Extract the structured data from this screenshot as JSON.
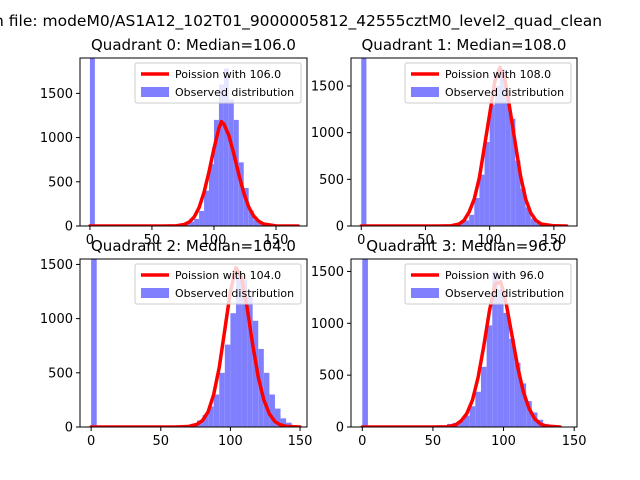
{
  "figure": {
    "title": "n file: modeM0/AS1A12_102T01_9000005812_42555cztM0_level2_quad_clean"
  },
  "colors": {
    "histogram": "#8080ff",
    "poisson_line": "#ff0000"
  },
  "chart_data": [
    {
      "type": "bar",
      "title": "Quadrant 0: Median=106.0",
      "xlim": [
        -8,
        175
      ],
      "ylim": [
        0,
        1900
      ],
      "xticks": [
        0,
        50,
        100,
        150
      ],
      "yticks": [
        0,
        500,
        1000,
        1500
      ],
      "legend_position": "top-right",
      "legend": [
        {
          "label": "Poission with 106.0",
          "kind": "line"
        },
        {
          "label": "Observed distribution",
          "kind": "patch"
        }
      ],
      "histogram": {
        "bin_width": 4,
        "x": [
          0,
          76,
          80,
          84,
          88,
          92,
          96,
          100,
          104,
          108,
          112,
          116,
          120,
          124,
          128,
          132,
          136,
          140
        ],
        "values": [
          1900,
          20,
          50,
          80,
          170,
          400,
          700,
          1200,
          1600,
          1780,
          1430,
          1200,
          720,
          430,
          170,
          70,
          30,
          10
        ]
      },
      "poisson": {
        "mean": 106,
        "x": [
          0,
          60,
          70,
          76,
          80,
          84,
          88,
          92,
          96,
          100,
          104,
          106,
          108,
          112,
          116,
          120,
          124,
          128,
          132,
          136,
          140,
          150,
          168
        ],
        "values": [
          0,
          0,
          3,
          17,
          44,
          101,
          209,
          381,
          613,
          876,
          1107,
          1180,
          1154,
          1026,
          817,
          585,
          376,
          216,
          113,
          54,
          23,
          2,
          0
        ]
      }
    },
    {
      "type": "bar",
      "title": "Quadrant 1: Median=108.0",
      "xlim": [
        -8,
        168
      ],
      "ylim": [
        0,
        1800
      ],
      "xticks": [
        0,
        50,
        100,
        150
      ],
      "yticks": [
        0,
        500,
        1000,
        1500
      ],
      "legend_position": "top-right",
      "legend": [
        {
          "label": "Poission with 108.0",
          "kind": "line"
        },
        {
          "label": "Observed distribution",
          "kind": "patch"
        }
      ],
      "histogram": {
        "bin_width": 4,
        "x": [
          0,
          70,
          76,
          80,
          84,
          88,
          92,
          96,
          100,
          104,
          108,
          112,
          116,
          120,
          124,
          128,
          132,
          136,
          140
        ],
        "values": [
          1800,
          20,
          40,
          60,
          120,
          300,
          550,
          900,
          1300,
          1500,
          1680,
          1450,
          1150,
          700,
          400,
          200,
          80,
          30,
          10
        ]
      },
      "poisson": {
        "mean": 108,
        "x": [
          0,
          60,
          70,
          76,
          80,
          84,
          88,
          92,
          96,
          100,
          104,
          108,
          112,
          116,
          120,
          124,
          128,
          132,
          136,
          140,
          150,
          160
        ],
        "values": [
          0,
          0,
          3,
          20,
          60,
          150,
          290,
          520,
          860,
          1200,
          1550,
          1700,
          1560,
          1230,
          880,
          540,
          290,
          140,
          60,
          22,
          2,
          0
        ]
      }
    },
    {
      "type": "bar",
      "title": "Quadrant 2: Median=104.0",
      "xlim": [
        -8,
        155
      ],
      "ylim": [
        0,
        1550
      ],
      "xticks": [
        0,
        50,
        100,
        150
      ],
      "yticks": [
        0,
        500,
        1000,
        1500
      ],
      "legend_position": "top-right",
      "legend": [
        {
          "label": "Poission with 104.0",
          "kind": "line"
        },
        {
          "label": "Observed distribution",
          "kind": "patch"
        }
      ],
      "histogram": {
        "bin_width": 4,
        "x": [
          0,
          68,
          72,
          76,
          80,
          84,
          88,
          92,
          96,
          100,
          104,
          108,
          112,
          116,
          120,
          124,
          128,
          132,
          136,
          140,
          144
        ],
        "values": [
          1550,
          20,
          30,
          60,
          110,
          190,
          300,
          500,
          760,
          1050,
          1420,
          1360,
          1200,
          980,
          720,
          500,
          300,
          170,
          80,
          40,
          10
        ]
      },
      "poisson": {
        "mean": 104,
        "x": [
          0,
          60,
          70,
          76,
          80,
          84,
          88,
          92,
          96,
          100,
          104,
          108,
          112,
          116,
          120,
          124,
          128,
          132,
          136,
          140,
          150
        ],
        "values": [
          0,
          0,
          5,
          25,
          60,
          140,
          300,
          550,
          900,
          1250,
          1470,
          1380,
          1100,
          760,
          460,
          250,
          120,
          50,
          20,
          6,
          0
        ]
      }
    },
    {
      "type": "bar",
      "title": "Quadrant 3: Median=96.0",
      "xlim": [
        -8,
        152
      ],
      "ylim": [
        0,
        1620
      ],
      "xticks": [
        0,
        50,
        100,
        150
      ],
      "yticks": [
        0,
        500,
        1000,
        1500
      ],
      "legend_position": "top-right",
      "legend": [
        {
          "label": "Poission with 96.0",
          "kind": "line"
        },
        {
          "label": "Observed distribution",
          "kind": "patch"
        }
      ],
      "histogram": {
        "bin_width": 4,
        "x": [
          0,
          60,
          64,
          68,
          72,
          76,
          80,
          84,
          88,
          92,
          96,
          100,
          104,
          108,
          112,
          116,
          120,
          124,
          128,
          132,
          136
        ],
        "values": [
          1620,
          30,
          40,
          60,
          110,
          200,
          340,
          580,
          980,
          1500,
          1330,
          1100,
          850,
          620,
          420,
          250,
          140,
          70,
          30,
          10,
          5
        ]
      },
      "poisson": {
        "mean": 96,
        "x": [
          0,
          50,
          60,
          66,
          70,
          74,
          78,
          82,
          86,
          90,
          94,
          98,
          102,
          106,
          110,
          114,
          118,
          122,
          126,
          130,
          140
        ],
        "values": [
          0,
          0,
          3,
          20,
          60,
          130,
          260,
          480,
          780,
          1120,
          1380,
          1400,
          1180,
          880,
          580,
          340,
          180,
          80,
          30,
          10,
          0
        ]
      }
    }
  ]
}
